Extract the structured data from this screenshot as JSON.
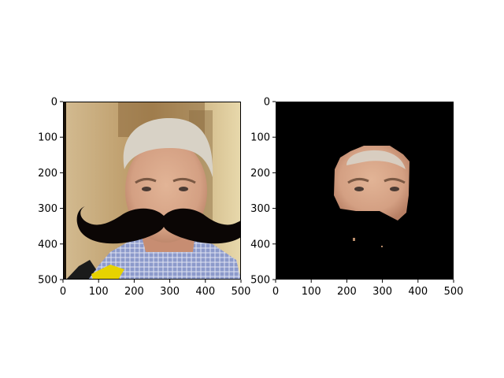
{
  "figure": {
    "background": "#ffffff",
    "panels": [
      {
        "id": "original",
        "content": "photo-with-mustache-overlay",
        "xticks": [
          "0",
          "100",
          "200",
          "300",
          "400",
          "500"
        ],
        "yticks": [
          "0",
          "100",
          "200",
          "300",
          "400",
          "500"
        ]
      },
      {
        "id": "skin-mask",
        "content": "face-segmentation-on-black",
        "xticks": [
          "0",
          "100",
          "200",
          "300",
          "400",
          "500"
        ],
        "yticks": [
          "0",
          "100",
          "200",
          "300",
          "400",
          "500"
        ]
      }
    ]
  },
  "colors": {
    "axes": "#000000",
    "mask_background": "#000000",
    "mustache": "#0b0605",
    "photo_wall": "#c7ae86",
    "shirt": "#7e8fbf",
    "skin": "#d7a78a",
    "hair": "#d9d3c8",
    "mic_yellow": "#e9d500"
  }
}
